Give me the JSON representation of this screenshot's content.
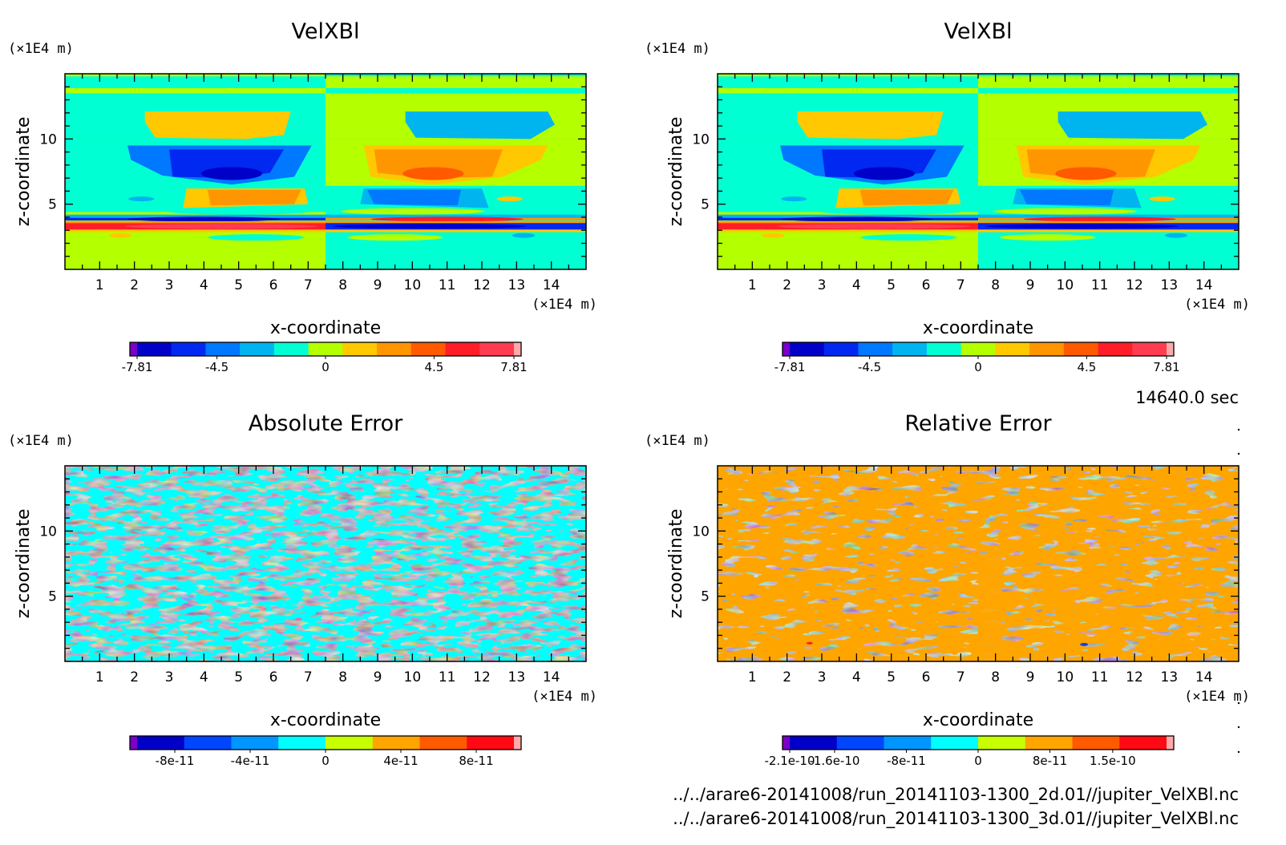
{
  "timestamp": "14640.0 sec",
  "file_paths": [
    "../../arare6-20141008/run_20141103-1300_2d.01//jupiter_VelXBl.nc",
    "../../arare6-20141008/run_20141103-1300_3d.01//jupiter_VelXBl.nc"
  ],
  "colors": {
    "palette": [
      "#7a00c8",
      "#0000c8",
      "#0046ff",
      "#0096ff",
      "#00c8ff",
      "#00ffe0",
      "#b4ff00",
      "#ffd200",
      "#ff9600",
      "#ff5000",
      "#ff1e3c",
      "#ffaaaa"
    ]
  },
  "chart_data": [
    {
      "type": "heatmap",
      "title": "VelXBl",
      "xlabel": "x-coordinate",
      "ylabel": "z-coordinate",
      "x_unit": "(×1E4 m)",
      "y_unit": "(×1E4 m)",
      "xlim": [
        0,
        15
      ],
      "ylim": [
        0,
        15
      ],
      "x_ticks": [
        "1",
        "2",
        "3",
        "4",
        "5",
        "6",
        "7",
        "8",
        "9",
        "10",
        "11",
        "12",
        "13",
        "14"
      ],
      "y_ticks": [
        "5",
        "10"
      ],
      "field": "velxbl",
      "colorbar": {
        "colors": [
          "#7a00c8",
          "#0000c8",
          "#0028f0",
          "#0078ff",
          "#00b4f0",
          "#00ffd2",
          "#b4ff00",
          "#ffc800",
          "#ff9600",
          "#ff5a00",
          "#ff1e28",
          "#ff3c50",
          "#ffaaaa"
        ],
        "tick_labels": [
          "-7.81",
          "-4.5",
          "0",
          "4.5",
          "7.81"
        ],
        "range": [
          -7.81,
          7.81
        ]
      }
    },
    {
      "type": "heatmap",
      "title": "VelXBl",
      "xlabel": "x-coordinate",
      "ylabel": "z-coordinate",
      "x_unit": "(×1E4 m)",
      "y_unit": "(×1E4 m)",
      "xlim": [
        0,
        15
      ],
      "ylim": [
        0,
        15
      ],
      "x_ticks": [
        "1",
        "2",
        "3",
        "4",
        "5",
        "6",
        "7",
        "8",
        "9",
        "10",
        "11",
        "12",
        "13",
        "14"
      ],
      "y_ticks": [
        "5",
        "10"
      ],
      "field": "velxbl",
      "colorbar": {
        "colors": [
          "#7a00c8",
          "#0000c8",
          "#0028f0",
          "#0078ff",
          "#00b4f0",
          "#00ffd2",
          "#b4ff00",
          "#ffc800",
          "#ff9600",
          "#ff5a00",
          "#ff1e28",
          "#ff3c50",
          "#ffaaaa"
        ],
        "tick_labels": [
          "-7.81",
          "-4.5",
          "0",
          "4.5",
          "7.81"
        ],
        "range": [
          -7.81,
          7.81
        ]
      }
    },
    {
      "type": "heatmap",
      "title": "Absolute Error",
      "xlabel": "x-coordinate",
      "ylabel": "z-coordinate",
      "x_unit": "(×1E4 m)",
      "y_unit": "(×1E4 m)",
      "xlim": [
        0,
        15
      ],
      "ylim": [
        0,
        15
      ],
      "x_ticks": [
        "1",
        "2",
        "3",
        "4",
        "5",
        "6",
        "7",
        "8",
        "9",
        "10",
        "11",
        "12",
        "13",
        "14"
      ],
      "y_ticks": [
        "5",
        "10"
      ],
      "field": "abs_error",
      "colorbar": {
        "colors": [
          "#7a00c8",
          "#0000c8",
          "#0046ff",
          "#0096ff",
          "#00ffff",
          "#c8ff00",
          "#ffa500",
          "#ff5a00",
          "#ff0a14",
          "#ffaaaa"
        ],
        "tick_labels": [
          "-8e-11",
          "-4e-11",
          "0",
          "4e-11",
          "8e-11"
        ],
        "range": [
          -1e-10,
          1e-10
        ]
      }
    },
    {
      "type": "heatmap",
      "title": "Relative Error",
      "xlabel": "x-coordinate",
      "ylabel": "z-coordinate",
      "x_unit": "(×1E4 m)",
      "y_unit": "(×1E4 m)",
      "xlim": [
        0,
        15
      ],
      "ylim": [
        0,
        15
      ],
      "x_ticks": [
        "1",
        "2",
        "3",
        "4",
        "5",
        "6",
        "7",
        "8",
        "9",
        "10",
        "11",
        "12",
        "13",
        "14"
      ],
      "y_ticks": [
        "5",
        "10"
      ],
      "field": "rel_error",
      "colorbar": {
        "colors": [
          "#7a00c8",
          "#0000c8",
          "#0046ff",
          "#0096ff",
          "#00ffff",
          "#c8ff00",
          "#ffa500",
          "#ff5a00",
          "#ff0a14",
          "#ffaaaa"
        ],
        "tick_labels": [
          "-2.1e-10",
          "-1.6e-10",
          "-8e-11",
          "0",
          "8e-11",
          "1.5e-10"
        ],
        "range": [
          -2.1e-10,
          2.1e-10
        ]
      }
    }
  ]
}
